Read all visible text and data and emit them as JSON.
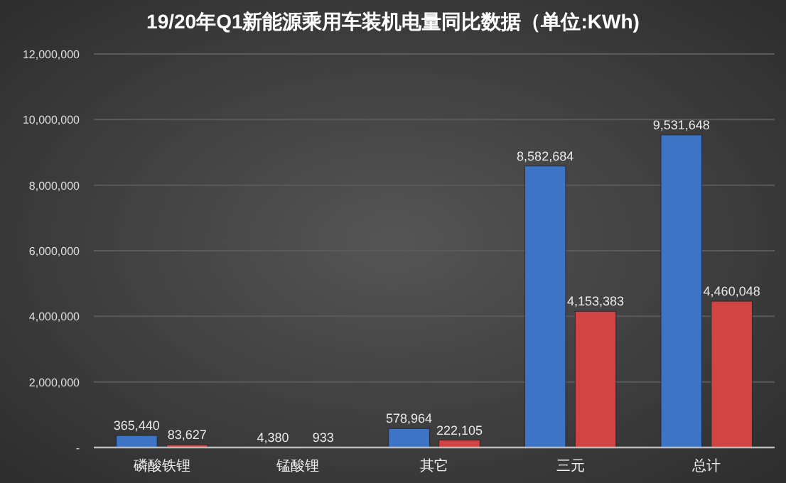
{
  "chart_data": {
    "type": "bar",
    "title": "19/20年Q1新能源乘用车装机电量同比数据（单位:KWh)",
    "categories": [
      "磷酸铁锂",
      "锰酸锂",
      "其它",
      "三元",
      "总计"
    ],
    "series": [
      {
        "color": "#3d74c6",
        "values": [
          365440,
          4380,
          578964,
          8582684,
          9531648
        ],
        "value_labels": [
          "365,440",
          "4,380",
          "578,964",
          "8,582,684",
          "9,531,648"
        ]
      },
      {
        "color": "#d24343",
        "values": [
          83627,
          933,
          222105,
          4153383,
          4460048
        ],
        "value_labels": [
          "83,627",
          "933",
          "222,105",
          "4,153,383",
          "4,460,048"
        ]
      }
    ],
    "ylim": [
      0,
      12000000
    ],
    "yticks": [
      {
        "value": 0,
        "label": "-"
      },
      {
        "value": 2000000,
        "label": "2,000,000"
      },
      {
        "value": 4000000,
        "label": "4,000,000"
      },
      {
        "value": 6000000,
        "label": "6,000,000"
      },
      {
        "value": 8000000,
        "label": "8,000,000"
      },
      {
        "value": 10000000,
        "label": "10,000,000"
      },
      {
        "value": 12000000,
        "label": "12,000,000"
      }
    ],
    "grid": "y"
  }
}
